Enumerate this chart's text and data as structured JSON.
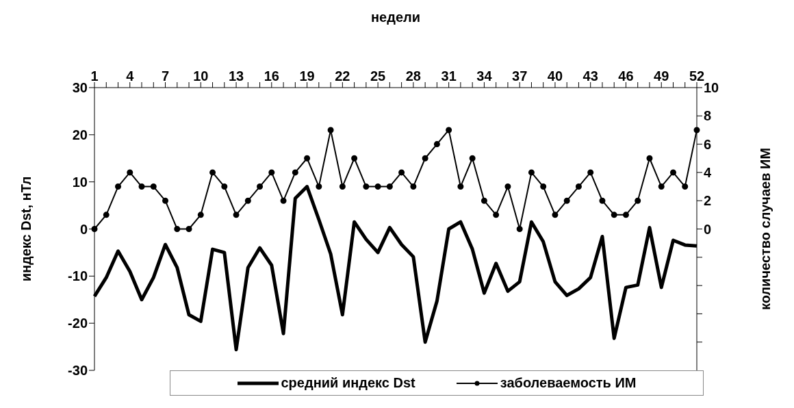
{
  "chart_data": {
    "type": "line",
    "xlabel": "недели",
    "ylabel": "индекс Dst, нТл",
    "y2label": "количество случаев ИМ",
    "categories": [
      "1",
      null,
      null,
      "4",
      null,
      null,
      "7",
      null,
      null,
      "10",
      null,
      null,
      "13",
      null,
      null,
      "16",
      null,
      null,
      "19",
      null,
      null,
      "22",
      null,
      null,
      "25",
      null,
      null,
      "28",
      null,
      null,
      "31",
      null,
      null,
      "34",
      null,
      null,
      "37",
      null,
      null,
      "40",
      null,
      null,
      "43",
      null,
      null,
      "46",
      null,
      null,
      "49",
      null,
      null,
      "52"
    ],
    "series": [
      {
        "name": "средний индекс Dst",
        "color": "#000000",
        "marker": "none",
        "values": [
          -14.3,
          -10.3,
          -4.7,
          -9,
          -15,
          -10.3,
          -3.3,
          -8.2,
          -18.2,
          -19.6,
          -4.3,
          -5,
          -25.6,
          -8.2,
          -4,
          -7.7,
          -22.2,
          6.5,
          9,
          2,
          -5.3,
          -18.2,
          1.5,
          -2.2,
          -5,
          0.3,
          -3.3,
          -5.9,
          -24,
          -15.3,
          0,
          1.5,
          -4.3,
          -13.6,
          -7.3,
          -13.2,
          -11.2,
          1.5,
          -2.7,
          -11.2,
          -14.1,
          -12.7,
          -10.3,
          -1.6,
          -23.2,
          -12.4,
          -11.9,
          0.3,
          -12.4,
          -2.4,
          -3.4,
          -3.6
        ]
      },
      {
        "name": "заболеваемость ИМ",
        "color": "#000000",
        "marker": "circle",
        "axis": "y2",
        "values": [
          0,
          1,
          3,
          4,
          3,
          3,
          2,
          0,
          0,
          1,
          4,
          3,
          1,
          2,
          3,
          4,
          2,
          4,
          5,
          3,
          7,
          3,
          5,
          3,
          3,
          3,
          4,
          3,
          5,
          6,
          7,
          3,
          5,
          2,
          1,
          3,
          0,
          4,
          3,
          1,
          2,
          3,
          4,
          2,
          1,
          1,
          2,
          5,
          3,
          4,
          3,
          7
        ]
      }
    ],
    "ylim": [
      -30,
      30
    ],
    "yticks": [
      -30,
      -20,
      -10,
      0,
      10,
      20,
      30
    ],
    "y2lim": [
      -10,
      10
    ],
    "y2ticks": [
      {
        "value": -8,
        "label": null
      },
      {
        "value": -6,
        "label": null
      },
      {
        "value": -4,
        "label": null
      },
      {
        "value": -2,
        "label": null
      },
      0,
      2,
      4,
      6,
      8,
      10
    ],
    "legend": "bottom",
    "line_style": "solid"
  }
}
